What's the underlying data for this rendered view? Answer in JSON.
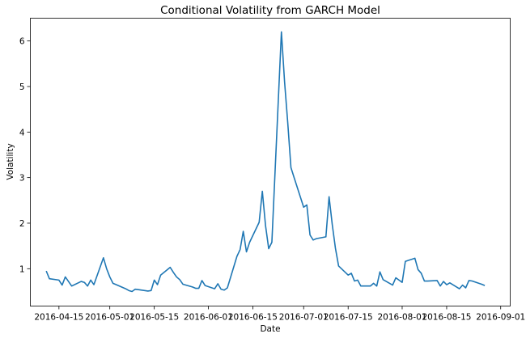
{
  "chart_data": {
    "type": "line",
    "title": "Conditional Volatility from GARCH Model",
    "xlabel": "Date",
    "ylabel": "Volatility",
    "grid": false,
    "legend": "none",
    "xlim_days": [
      -5,
      146
    ],
    "ylim": [
      0.18,
      6.5
    ],
    "x_ticks": [
      {
        "day": 4,
        "label": "2016-04-15"
      },
      {
        "day": 20,
        "label": "2016-05-01"
      },
      {
        "day": 34,
        "label": "2016-05-15"
      },
      {
        "day": 51,
        "label": "2016-06-01"
      },
      {
        "day": 65,
        "label": "2016-06-15"
      },
      {
        "day": 81,
        "label": "2016-07-01"
      },
      {
        "day": 95,
        "label": "2016-07-15"
      },
      {
        "day": 112,
        "label": "2016-08-01"
      },
      {
        "day": 126,
        "label": "2016-08-15"
      },
      {
        "day": 143,
        "label": "2016-09-01"
      }
    ],
    "y_ticks": [
      1,
      2,
      3,
      4,
      5,
      6
    ],
    "series": [
      {
        "name": "Conditional Volatility",
        "color": "#1f77b4",
        "x_start_date": "2016-04-11",
        "x_days": [
          0,
          1,
          4,
          5,
          6,
          8,
          11,
          12,
          13,
          14,
          15,
          18,
          19,
          20,
          21,
          22,
          25,
          26,
          27,
          28,
          29,
          32,
          33,
          34,
          35,
          36,
          39,
          40,
          41,
          42,
          43,
          46,
          47,
          48,
          49,
          50,
          53,
          54,
          55,
          56,
          57,
          60,
          61,
          62,
          63,
          64,
          67,
          68,
          69,
          70,
          71,
          74,
          75,
          76,
          77,
          78,
          81,
          82,
          83,
          84,
          85,
          88,
          89,
          90,
          91,
          92,
          95,
          96,
          97,
          98,
          99,
          102,
          103,
          104,
          105,
          106,
          109,
          110,
          111,
          112,
          113,
          116,
          117,
          118,
          119,
          120,
          123,
          124,
          125,
          126,
          127,
          130,
          131,
          132,
          133,
          134,
          137,
          138
        ],
        "values": [
          0.95,
          0.78,
          0.75,
          0.64,
          0.82,
          0.62,
          0.72,
          0.7,
          0.62,
          0.75,
          0.65,
          1.24,
          1.0,
          0.82,
          0.68,
          0.65,
          0.56,
          0.52,
          0.5,
          0.55,
          0.54,
          0.51,
          0.52,
          0.75,
          0.65,
          0.86,
          1.03,
          0.92,
          0.82,
          0.76,
          0.66,
          0.6,
          0.57,
          0.57,
          0.74,
          0.63,
          0.56,
          0.67,
          0.55,
          0.53,
          0.58,
          1.27,
          1.42,
          1.82,
          1.37,
          1.58,
          2.02,
          2.7,
          1.95,
          1.44,
          1.58,
          6.2,
          5.1,
          4.2,
          3.22,
          3.0,
          2.35,
          2.4,
          1.74,
          1.63,
          1.66,
          1.7,
          2.58,
          1.97,
          1.45,
          1.06,
          0.86,
          0.9,
          0.73,
          0.75,
          0.62,
          0.62,
          0.68,
          0.62,
          0.93,
          0.76,
          0.64,
          0.8,
          0.75,
          0.7,
          1.16,
          1.23,
          0.98,
          0.9,
          0.73,
          0.73,
          0.74,
          0.62,
          0.72,
          0.65,
          0.69,
          0.56,
          0.64,
          0.58,
          0.74,
          0.73,
          0.66,
          0.63
        ]
      }
    ]
  }
}
